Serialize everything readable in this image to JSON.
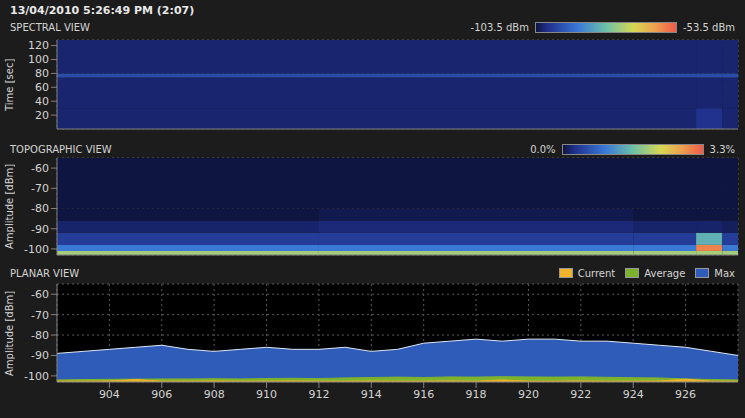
{
  "header": "13/04/2010 5:26:49 PM (2:07)",
  "chart_data": [
    {
      "type": "heatmap",
      "title": "SPECTRAL VIEW",
      "y_label": "Time [sec]",
      "xlim": [
        902,
        928
      ],
      "xticks": [
        904,
        906,
        908,
        910,
        912,
        914,
        916,
        918,
        920,
        922,
        924,
        926
      ],
      "ylim": [
        0,
        128
      ],
      "yticks": [
        20,
        40,
        60,
        80,
        100,
        120
      ],
      "grid": true,
      "tick_labels": "y",
      "x_bins": [
        902,
        926.4,
        927.4,
        928
      ],
      "y_bins": [
        0,
        30,
        74,
        80,
        128
      ],
      "z": [
        [
          -101,
          -99,
          -101
        ],
        [
          -101,
          -101,
          -101
        ],
        [
          -95,
          -95,
          -95
        ],
        [
          -101,
          -101,
          -101
        ]
      ],
      "colorbar": {
        "range": [
          -103.5,
          -53.5
        ],
        "ticks": [
          {
            "value": -103.5,
            "label": "-103.5 dBm"
          },
          {
            "value": -53.5,
            "label": "-53.5 dBm"
          }
        ]
      }
    },
    {
      "type": "heatmap",
      "title": "TOPOGRAPHIC VIEW",
      "y_label": "Amplitude [dBm]",
      "xlim": [
        902,
        928
      ],
      "xticks": [
        904,
        906,
        908,
        910,
        912,
        914,
        916,
        918,
        920,
        922,
        924,
        926
      ],
      "ylim": [
        -103,
        -55
      ],
      "yticks": [
        -100,
        -90,
        -80,
        -70,
        -60
      ],
      "grid": true,
      "tick_labels": "y",
      "x_bins": [
        902,
        912,
        924,
        926.4,
        927.4,
        928
      ],
      "y_bins": [
        -103,
        -101,
        -98,
        -92,
        -86,
        -80,
        -55
      ],
      "z": [
        [
          2.0,
          2.0,
          2.0,
          2.0,
          2.0
        ],
        [
          1.0,
          1.0,
          1.0,
          3.0,
          1.0
        ],
        [
          0.4,
          0.4,
          0.4,
          1.5,
          0.4
        ],
        [
          0.15,
          0.2,
          0.15,
          0.15,
          0.1
        ],
        [
          0,
          0.05,
          0,
          0,
          0
        ],
        [
          0,
          0,
          0,
          0,
          0
        ]
      ],
      "colorbar": {
        "range": [
          0,
          3.3
        ],
        "ticks": [
          {
            "value": 0,
            "label": "0.0%"
          },
          {
            "value": 3.3,
            "label": "3.3%"
          }
        ]
      }
    },
    {
      "type": "area",
      "title": "PLANAR VIEW",
      "y_label": "Amplitude [dBm]",
      "xlim": [
        902,
        928
      ],
      "xticks": [
        904,
        906,
        908,
        910,
        912,
        914,
        916,
        918,
        920,
        922,
        924,
        926
      ],
      "ylim": [
        -103,
        -55
      ],
      "yticks": [
        -100,
        -90,
        -80,
        -70,
        -60
      ],
      "grid": true,
      "legend": "top right",
      "x": [
        902,
        903,
        904,
        905,
        906,
        907,
        908,
        909,
        910,
        911,
        912,
        913,
        914,
        915,
        916,
        917,
        918,
        919,
        920,
        921,
        922,
        923,
        924,
        925,
        926,
        927,
        928
      ],
      "series": [
        {
          "name": "Current",
          "color": "#f0b428",
          "values": [
            -102.6,
            -102.6,
            -102.5,
            -101.8,
            -102.6,
            -102.6,
            -102.5,
            -102.6,
            -102.6,
            -102.5,
            -102.6,
            -102.6,
            -102.5,
            -102.6,
            -102.6,
            -102.5,
            -102.6,
            -102.0,
            -102.6,
            -102.6,
            -102.5,
            -102.6,
            -102.6,
            -102.5,
            -101.6,
            -102.6,
            -102.6
          ]
        },
        {
          "name": "Average",
          "color": "#7cb22e",
          "values": [
            -102.0,
            -101.8,
            -101.7,
            -101.6,
            -101.5,
            -101.5,
            -101.4,
            -101.5,
            -101.3,
            -101.2,
            -101.3,
            -101.0,
            -100.8,
            -100.6,
            -100.8,
            -100.5,
            -100.6,
            -100.4,
            -100.5,
            -100.6,
            -100.5,
            -100.7,
            -100.9,
            -101.0,
            -101.5,
            -101.8,
            -102.0
          ]
        },
        {
          "name": "Max",
          "color": "#2e5cb8",
          "values": [
            -89,
            -88,
            -87,
            -86,
            -85,
            -87,
            -88,
            -87,
            -86,
            -87,
            -87,
            -86,
            -88,
            -87,
            -84,
            -83,
            -82,
            -83,
            -82,
            -82,
            -83,
            -83,
            -84,
            -85,
            -86,
            -88,
            -90
          ]
        }
      ]
    }
  ]
}
